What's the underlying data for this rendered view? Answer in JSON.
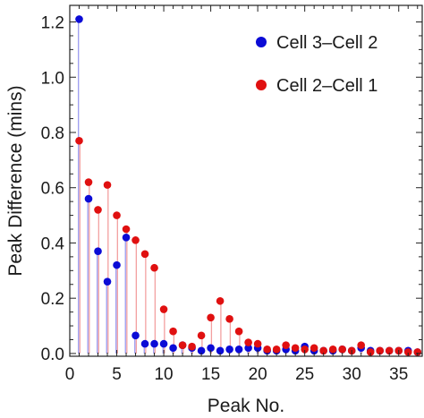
{
  "chart_data": {
    "type": "scatter",
    "style": "stem",
    "xlabel": "Peak No.",
    "ylabel": "Peak Difference (mins)",
    "xlim": [
      0,
      37.5
    ],
    "ylim": [
      -0.01,
      1.26
    ],
    "xticks": [
      0,
      5,
      10,
      15,
      20,
      25,
      30,
      35
    ],
    "yticks": [
      0.0,
      0.2,
      0.4,
      0.6,
      0.8,
      1.0,
      1.2
    ],
    "ytick_labels": [
      "0.0",
      "0.2",
      "0.4",
      "0.6",
      "0.8",
      "1.0",
      "1.2"
    ],
    "legend_position": "top-right",
    "grid": false,
    "series": [
      {
        "name": "Cell 3–Cell 2",
        "color": "#0b0bd6",
        "stem_color": "#9a9af0",
        "x": [
          1,
          2,
          3,
          4,
          5,
          6,
          7,
          8,
          9,
          10,
          11,
          12,
          13,
          14,
          15,
          16,
          17,
          18,
          19,
          20,
          21,
          22,
          23,
          24,
          25,
          26,
          27,
          28,
          29,
          30,
          31,
          32,
          33,
          34,
          35,
          36,
          37
        ],
        "y": [
          1.21,
          0.56,
          0.37,
          0.26,
          0.32,
          0.42,
          0.065,
          0.035,
          0.035,
          0.035,
          0.02,
          0.03,
          0.02,
          0.01,
          0.02,
          0.01,
          0.015,
          0.015,
          0.02,
          0.02,
          0.01,
          0.01,
          0.015,
          0.01,
          0.025,
          0.01,
          0.01,
          0.01,
          0.015,
          0.01,
          0.02,
          0.01,
          0.01,
          0.01,
          0.01,
          0.01,
          0.005
        ]
      },
      {
        "name": "Cell 2–Cell 1",
        "color": "#e01010",
        "stem_color": "#f3a0a0",
        "x": [
          1,
          2,
          3,
          4,
          5,
          6,
          7,
          8,
          9,
          10,
          11,
          12,
          13,
          14,
          15,
          16,
          17,
          18,
          19,
          20,
          21,
          22,
          23,
          24,
          25,
          26,
          27,
          28,
          29,
          30,
          31,
          32,
          33,
          34,
          35,
          36,
          37
        ],
        "y": [
          0.77,
          0.62,
          0.52,
          0.61,
          0.5,
          0.45,
          0.41,
          0.36,
          0.31,
          0.16,
          0.08,
          0.03,
          0.025,
          0.065,
          0.13,
          0.19,
          0.125,
          0.08,
          0.04,
          0.035,
          0.015,
          0.015,
          0.03,
          0.02,
          0.015,
          0.02,
          0.01,
          0.015,
          0.015,
          0.01,
          0.03,
          0.005,
          0.01,
          0.01,
          0.01,
          0.005,
          0.005
        ]
      }
    ]
  }
}
